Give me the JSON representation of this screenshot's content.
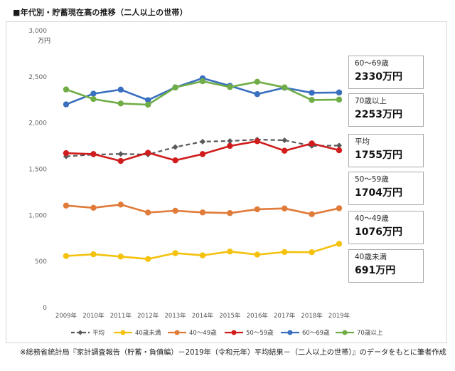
{
  "title": "■年代別・貯蓄現在高の推移（二人以上の世帯）",
  "note": "※総務省統計局『家計調査報告（貯蓄・負債編）－2019年（令和元年）平均結果－（二人以上の世帯）』のデータをもとに筆者作成",
  "callouts": [
    {
      "label": "60～69歳",
      "value": "2330万円"
    },
    {
      "label": "70歳以上",
      "value": "2253万円"
    },
    {
      "label": "平均",
      "value": "1755万円"
    },
    {
      "label": "50～59歳",
      "value": "1704万円"
    },
    {
      "label": "40～49歳",
      "value": "1076万円"
    },
    {
      "label": "40歳未満",
      "value": "691万円"
    }
  ],
  "chart_data": {
    "type": "line",
    "title": "■年代別・貯蓄現在高の推移（二人以上の世帯）",
    "ylabel": "万円",
    "ylim": [
      0,
      3000
    ],
    "yticks": [
      "0",
      "500",
      "1,000",
      "1,500",
      "2,000",
      "2,500",
      "3,000"
    ],
    "grid": false,
    "legend_position": "bottom",
    "categories": [
      "2009年",
      "2010年",
      "2011年",
      "2012年",
      "2013年",
      "2014年",
      "2015年",
      "2016年",
      "2017年",
      "2018年",
      "2019年"
    ],
    "series": [
      {
        "name": "平均",
        "color": "#595959",
        "dashed": true,
        "values": [
          1638,
          1657,
          1664,
          1658,
          1739,
          1798,
          1805,
          1820,
          1812,
          1752,
          1755
        ]
      },
      {
        "name": "40歳未満",
        "color": "#f4c20d",
        "dashed": false,
        "values": [
          559,
          578,
          553,
          527,
          590,
          566,
          608,
          574,
          602,
          600,
          691
        ]
      },
      {
        "name": "40～49歳",
        "color": "#e07b39",
        "dashed": false,
        "values": [
          1105,
          1081,
          1116,
          1030,
          1049,
          1031,
          1024,
          1065,
          1074,
          1012,
          1076
        ]
      },
      {
        "name": "50～59歳",
        "color": "#d01c1c",
        "dashed": false,
        "values": [
          1673,
          1663,
          1588,
          1677,
          1595,
          1663,
          1751,
          1802,
          1699,
          1778,
          1704
        ]
      },
      {
        "name": "60～69歳",
        "color": "#3a6fbf",
        "dashed": false,
        "values": [
          2201,
          2317,
          2361,
          2247,
          2385,
          2484,
          2402,
          2312,
          2382,
          2327,
          2330
        ]
      },
      {
        "name": "70歳以上",
        "color": "#70ad47",
        "dashed": false,
        "values": [
          2363,
          2259,
          2211,
          2198,
          2385,
          2452,
          2389,
          2446,
          2385,
          2249,
          2253
        ]
      }
    ]
  }
}
